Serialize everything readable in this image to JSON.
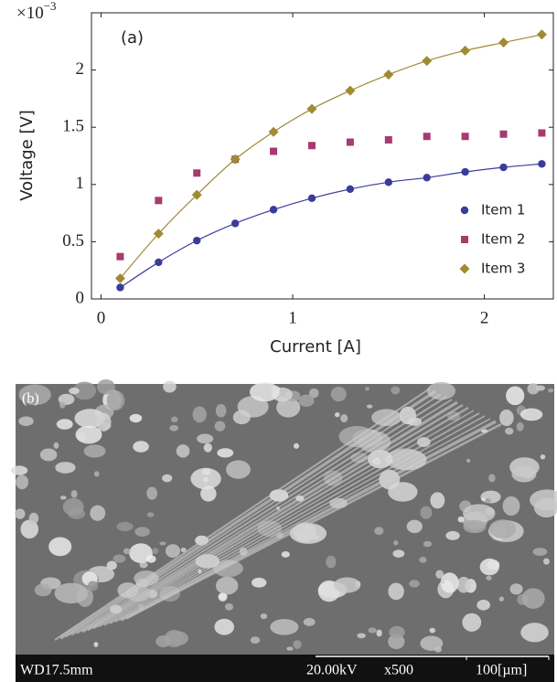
{
  "chart_data": {
    "type": "scatter",
    "annotation": "(a)",
    "y_scale_label": {
      "base": "×10",
      "exponent": "−3"
    },
    "xlabel": "Current [A]",
    "ylabel": "Voltage [V]",
    "x": [
      0.1,
      0.3,
      0.5,
      0.7,
      0.9,
      1.1,
      1.3,
      1.5,
      1.7,
      1.9,
      2.1,
      2.3
    ],
    "series": [
      {
        "name": "Item 1",
        "color": "#3b3b9c",
        "marker": "circle",
        "line": true,
        "values": [
          0.1,
          0.32,
          0.51,
          0.66,
          0.78,
          0.88,
          0.96,
          1.02,
          1.06,
          1.11,
          1.15,
          1.18
        ]
      },
      {
        "name": "Item 2",
        "color": "#a73a70",
        "marker": "square",
        "line": false,
        "values": [
          0.37,
          0.86,
          1.1,
          1.22,
          1.29,
          1.34,
          1.37,
          1.39,
          1.42,
          1.42,
          1.44,
          1.45
        ]
      },
      {
        "name": "Item 3",
        "color": "#a08a32",
        "marker": "diamond",
        "line": true,
        "values": [
          0.18,
          0.57,
          0.91,
          1.22,
          1.46,
          1.66,
          1.82,
          1.96,
          2.08,
          2.17,
          2.24,
          2.31
        ]
      }
    ],
    "xlim": [
      -0.05,
      2.36
    ],
    "ylim": [
      0,
      2.5
    ],
    "xticks": [
      0,
      1,
      2
    ],
    "yticks": [
      0,
      0.5,
      1,
      1.5,
      2
    ],
    "legend": "lower right",
    "grid": false
  },
  "image": {
    "panel_label": "(b)",
    "working_distance": "WD17.5mm",
    "voltage": "20.00kV",
    "magnification": "x500",
    "scale_bar": "100[µm]"
  }
}
